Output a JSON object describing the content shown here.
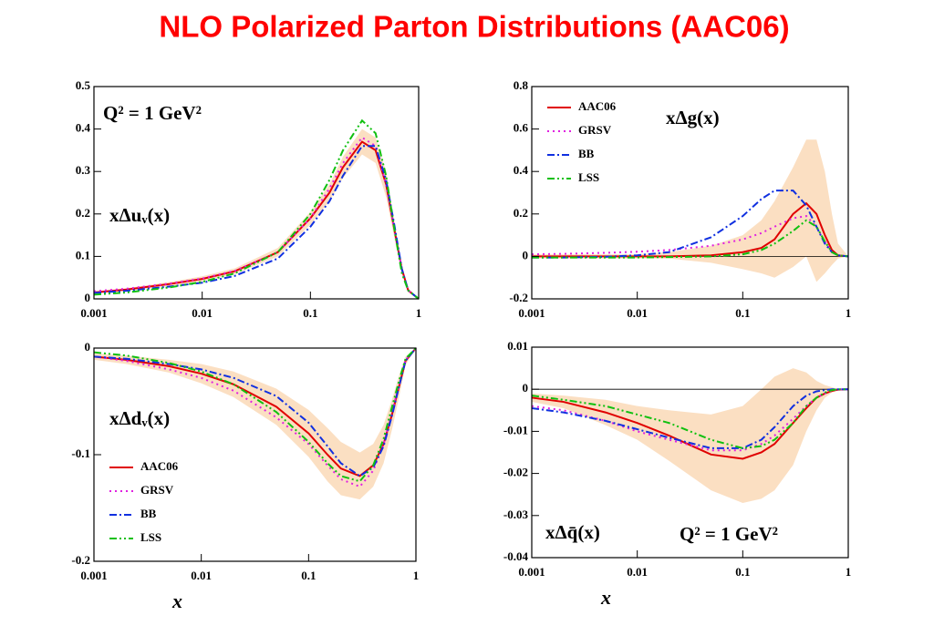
{
  "title": "NLO Polarized Parton Distributions (AAC06)",
  "chart_data": [
    {
      "type": "line",
      "xscale": "log",
      "legend": false,
      "annotations": [
        "Q² = 1 GeV²",
        "xΔuᵥ(x)"
      ],
      "x": [
        0.001,
        0.002,
        0.005,
        0.01,
        0.02,
        0.05,
        0.1,
        0.15,
        0.2,
        0.3,
        0.4,
        0.5,
        0.6,
        0.7,
        0.8,
        1
      ],
      "xlim": [
        0.001,
        1
      ],
      "xticks": [
        0.001,
        0.01,
        0.1,
        1
      ],
      "ylim": [
        0,
        0.5
      ],
      "yticks": [
        0,
        0.1,
        0.2,
        0.3,
        0.4,
        0.5
      ],
      "band_color": "#f7c48f",
      "series": [
        {
          "color": "#e00000",
          "style": "solid",
          "values": [
            0.015,
            0.022,
            0.035,
            0.047,
            0.065,
            0.11,
            0.19,
            0.25,
            0.31,
            0.37,
            0.35,
            0.27,
            0.16,
            0.07,
            0.02,
            0
          ],
          "upper": [
            0.018,
            0.025,
            0.04,
            0.053,
            0.072,
            0.12,
            0.205,
            0.27,
            0.335,
            0.4,
            0.38,
            0.3,
            0.18,
            0.08,
            0.025,
            0
          ],
          "lower": [
            0.012,
            0.019,
            0.03,
            0.041,
            0.058,
            0.1,
            0.175,
            0.23,
            0.285,
            0.34,
            0.32,
            0.24,
            0.14,
            0.06,
            0.015,
            0
          ]
        },
        {
          "color": "#e020e0",
          "style": "dotted",
          "values": [
            0.018,
            0.024,
            0.036,
            0.048,
            0.066,
            0.11,
            0.19,
            0.26,
            0.32,
            0.38,
            0.36,
            0.27,
            0.16,
            0.07,
            0.02,
            0
          ]
        },
        {
          "color": "#1030e0",
          "style": "dashdot",
          "values": [
            0.014,
            0.019,
            0.029,
            0.038,
            0.054,
            0.095,
            0.17,
            0.23,
            0.29,
            0.36,
            0.36,
            0.28,
            0.17,
            0.07,
            0.02,
            0
          ]
        },
        {
          "color": "#10c010",
          "style": "dashdotdot",
          "values": [
            0.01,
            0.015,
            0.027,
            0.04,
            0.06,
            0.11,
            0.2,
            0.28,
            0.35,
            0.42,
            0.39,
            0.29,
            0.16,
            0.06,
            0.02,
            0
          ]
        }
      ]
    },
    {
      "type": "line",
      "xscale": "log",
      "legend": true,
      "annotations": [
        "xΔg(x)"
      ],
      "x": [
        0.001,
        0.002,
        0.005,
        0.01,
        0.02,
        0.05,
        0.1,
        0.15,
        0.2,
        0.3,
        0.4,
        0.5,
        0.6,
        0.7,
        0.8,
        1
      ],
      "xlim": [
        0.001,
        1
      ],
      "xticks": [
        0.001,
        0.01,
        0.1,
        1
      ],
      "ylim": [
        -0.2,
        0.8
      ],
      "yticks": [
        -0.2,
        0,
        0.2,
        0.4,
        0.6,
        0.8
      ],
      "band_color": "#f7c48f",
      "series": [
        {
          "name": "AAC06",
          "color": "#e00000",
          "style": "solid",
          "values": [
            0,
            0,
            0,
            0,
            0,
            0.005,
            0.02,
            0.04,
            0.08,
            0.2,
            0.25,
            0.2,
            0.1,
            0.03,
            0.005,
            0
          ],
          "upper": [
            0.01,
            0.01,
            0.01,
            0.01,
            0.02,
            0.05,
            0.1,
            0.17,
            0.26,
            0.42,
            0.55,
            0.55,
            0.4,
            0.2,
            0.06,
            0
          ],
          "lower": [
            -0.01,
            -0.01,
            -0.01,
            -0.01,
            -0.01,
            -0.03,
            -0.06,
            -0.08,
            -0.1,
            -0.05,
            0,
            -0.12,
            -0.08,
            -0.04,
            -0.01,
            0
          ]
        },
        {
          "name": "GRSV",
          "color": "#e020e0",
          "style": "dotted",
          "values": [
            0.01,
            0.012,
            0.017,
            0.022,
            0.03,
            0.05,
            0.08,
            0.11,
            0.14,
            0.18,
            0.19,
            0.14,
            0.07,
            0.02,
            0.005,
            0
          ]
        },
        {
          "name": "BB",
          "color": "#1030e0",
          "style": "dashdot",
          "values": [
            -0.005,
            -0.005,
            -0.002,
            0.005,
            0.02,
            0.09,
            0.19,
            0.27,
            0.31,
            0.31,
            0.24,
            0.14,
            0.06,
            0.02,
            0.005,
            0
          ]
        },
        {
          "name": "LSS",
          "color": "#10c010",
          "style": "dashdotdot",
          "values": [
            -0.005,
            -0.005,
            -0.005,
            -0.005,
            -0.003,
            0,
            0.01,
            0.03,
            0.06,
            0.12,
            0.17,
            0.14,
            0.07,
            0.02,
            0.005,
            0
          ]
        }
      ]
    },
    {
      "type": "line",
      "xscale": "log",
      "legend": true,
      "xlabel": "x",
      "annotations": [
        "xΔdᵥ(x)"
      ],
      "x": [
        0.001,
        0.002,
        0.005,
        0.01,
        0.02,
        0.05,
        0.1,
        0.15,
        0.2,
        0.3,
        0.4,
        0.5,
        0.6,
        0.7,
        0.8,
        1
      ],
      "xlim": [
        0.001,
        1
      ],
      "xticks": [
        0.001,
        0.01,
        0.1,
        1
      ],
      "ylim": [
        -0.2,
        0
      ],
      "yticks": [
        -0.2,
        -0.1,
        0
      ],
      "band_color": "#f7c48f",
      "series": [
        {
          "name": "AAC06",
          "color": "#e00000",
          "style": "solid",
          "values": [
            -0.008,
            -0.011,
            -0.017,
            -0.024,
            -0.034,
            -0.055,
            -0.08,
            -0.1,
            -0.113,
            -0.12,
            -0.11,
            -0.09,
            -0.062,
            -0.035,
            -0.012,
            0
          ],
          "upper": [
            -0.005,
            -0.007,
            -0.011,
            -0.015,
            -0.022,
            -0.038,
            -0.058,
            -0.075,
            -0.088,
            -0.098,
            -0.09,
            -0.072,
            -0.048,
            -0.025,
            -0.008,
            0
          ],
          "lower": [
            -0.011,
            -0.015,
            -0.023,
            -0.033,
            -0.046,
            -0.072,
            -0.102,
            -0.125,
            -0.138,
            -0.142,
            -0.13,
            -0.108,
            -0.076,
            -0.045,
            -0.016,
            0
          ]
        },
        {
          "name": "GRSV",
          "color": "#e020e0",
          "style": "dotted",
          "values": [
            -0.008,
            -0.012,
            -0.02,
            -0.028,
            -0.04,
            -0.065,
            -0.09,
            -0.11,
            -0.123,
            -0.13,
            -0.115,
            -0.09,
            -0.06,
            -0.033,
            -0.011,
            0
          ]
        },
        {
          "name": "BB",
          "color": "#1030e0",
          "style": "dashdot",
          "values": [
            -0.008,
            -0.01,
            -0.015,
            -0.02,
            -0.028,
            -0.045,
            -0.07,
            -0.092,
            -0.108,
            -0.12,
            -0.112,
            -0.092,
            -0.063,
            -0.035,
            -0.012,
            0
          ]
        },
        {
          "name": "LSS",
          "color": "#10c010",
          "style": "dashdotdot",
          "values": [
            -0.004,
            -0.007,
            -0.014,
            -0.022,
            -0.034,
            -0.06,
            -0.088,
            -0.108,
            -0.12,
            -0.125,
            -0.11,
            -0.085,
            -0.055,
            -0.03,
            -0.01,
            0
          ]
        }
      ]
    },
    {
      "type": "line",
      "xscale": "log",
      "legend": false,
      "xlabel": "x",
      "annotations": [
        "xΔq̄(x)",
        "Q² = 1 GeV²"
      ],
      "x": [
        0.001,
        0.002,
        0.005,
        0.01,
        0.02,
        0.05,
        0.1,
        0.15,
        0.2,
        0.3,
        0.4,
        0.5,
        0.6,
        0.7,
        0.8,
        1
      ],
      "xlim": [
        0.001,
        1
      ],
      "xticks": [
        0.001,
        0.01,
        0.1,
        1
      ],
      "ylim": [
        -0.04,
        0.01
      ],
      "yticks": [
        -0.04,
        -0.03,
        -0.02,
        -0.01,
        0,
        0.01
      ],
      "band_color": "#f7c48f",
      "series": [
        {
          "color": "#e00000",
          "style": "solid",
          "values": [
            -0.002,
            -0.003,
            -0.0055,
            -0.008,
            -0.011,
            -0.0155,
            -0.0165,
            -0.015,
            -0.013,
            -0.008,
            -0.0045,
            -0.002,
            -0.001,
            -0.0004,
            -0.0001,
            0
          ],
          "upper": [
            -0.001,
            -0.0015,
            -0.0025,
            -0.004,
            -0.005,
            -0.006,
            -0.004,
            0,
            0.003,
            0.005,
            0.004,
            0.002,
            0.001,
            0.0005,
            0,
            0
          ],
          "lower": [
            -0.003,
            -0.0045,
            -0.0085,
            -0.012,
            -0.017,
            -0.024,
            -0.027,
            -0.026,
            -0.024,
            -0.018,
            -0.01,
            -0.005,
            -0.002,
            -0.0008,
            -0.0002,
            0
          ]
        },
        {
          "color": "#e020e0",
          "style": "dotted",
          "values": [
            -0.004,
            -0.005,
            -0.0075,
            -0.01,
            -0.012,
            -0.0145,
            -0.0145,
            -0.013,
            -0.011,
            -0.007,
            -0.004,
            -0.002,
            -0.001,
            -0.0003,
            0,
            0
          ]
        },
        {
          "color": "#1030e0",
          "style": "dashdot",
          "values": [
            -0.0045,
            -0.0055,
            -0.0075,
            -0.0095,
            -0.0115,
            -0.014,
            -0.014,
            -0.012,
            -0.009,
            -0.004,
            -0.0015,
            -0.0005,
            -0.0002,
            0,
            0,
            0
          ]
        },
        {
          "color": "#10c010",
          "style": "dashdotdot",
          "values": [
            -0.0015,
            -0.0025,
            -0.004,
            -0.006,
            -0.008,
            -0.012,
            -0.014,
            -0.0135,
            -0.012,
            -0.008,
            -0.004,
            -0.002,
            -0.0008,
            -0.0002,
            0,
            0
          ]
        }
      ]
    }
  ]
}
